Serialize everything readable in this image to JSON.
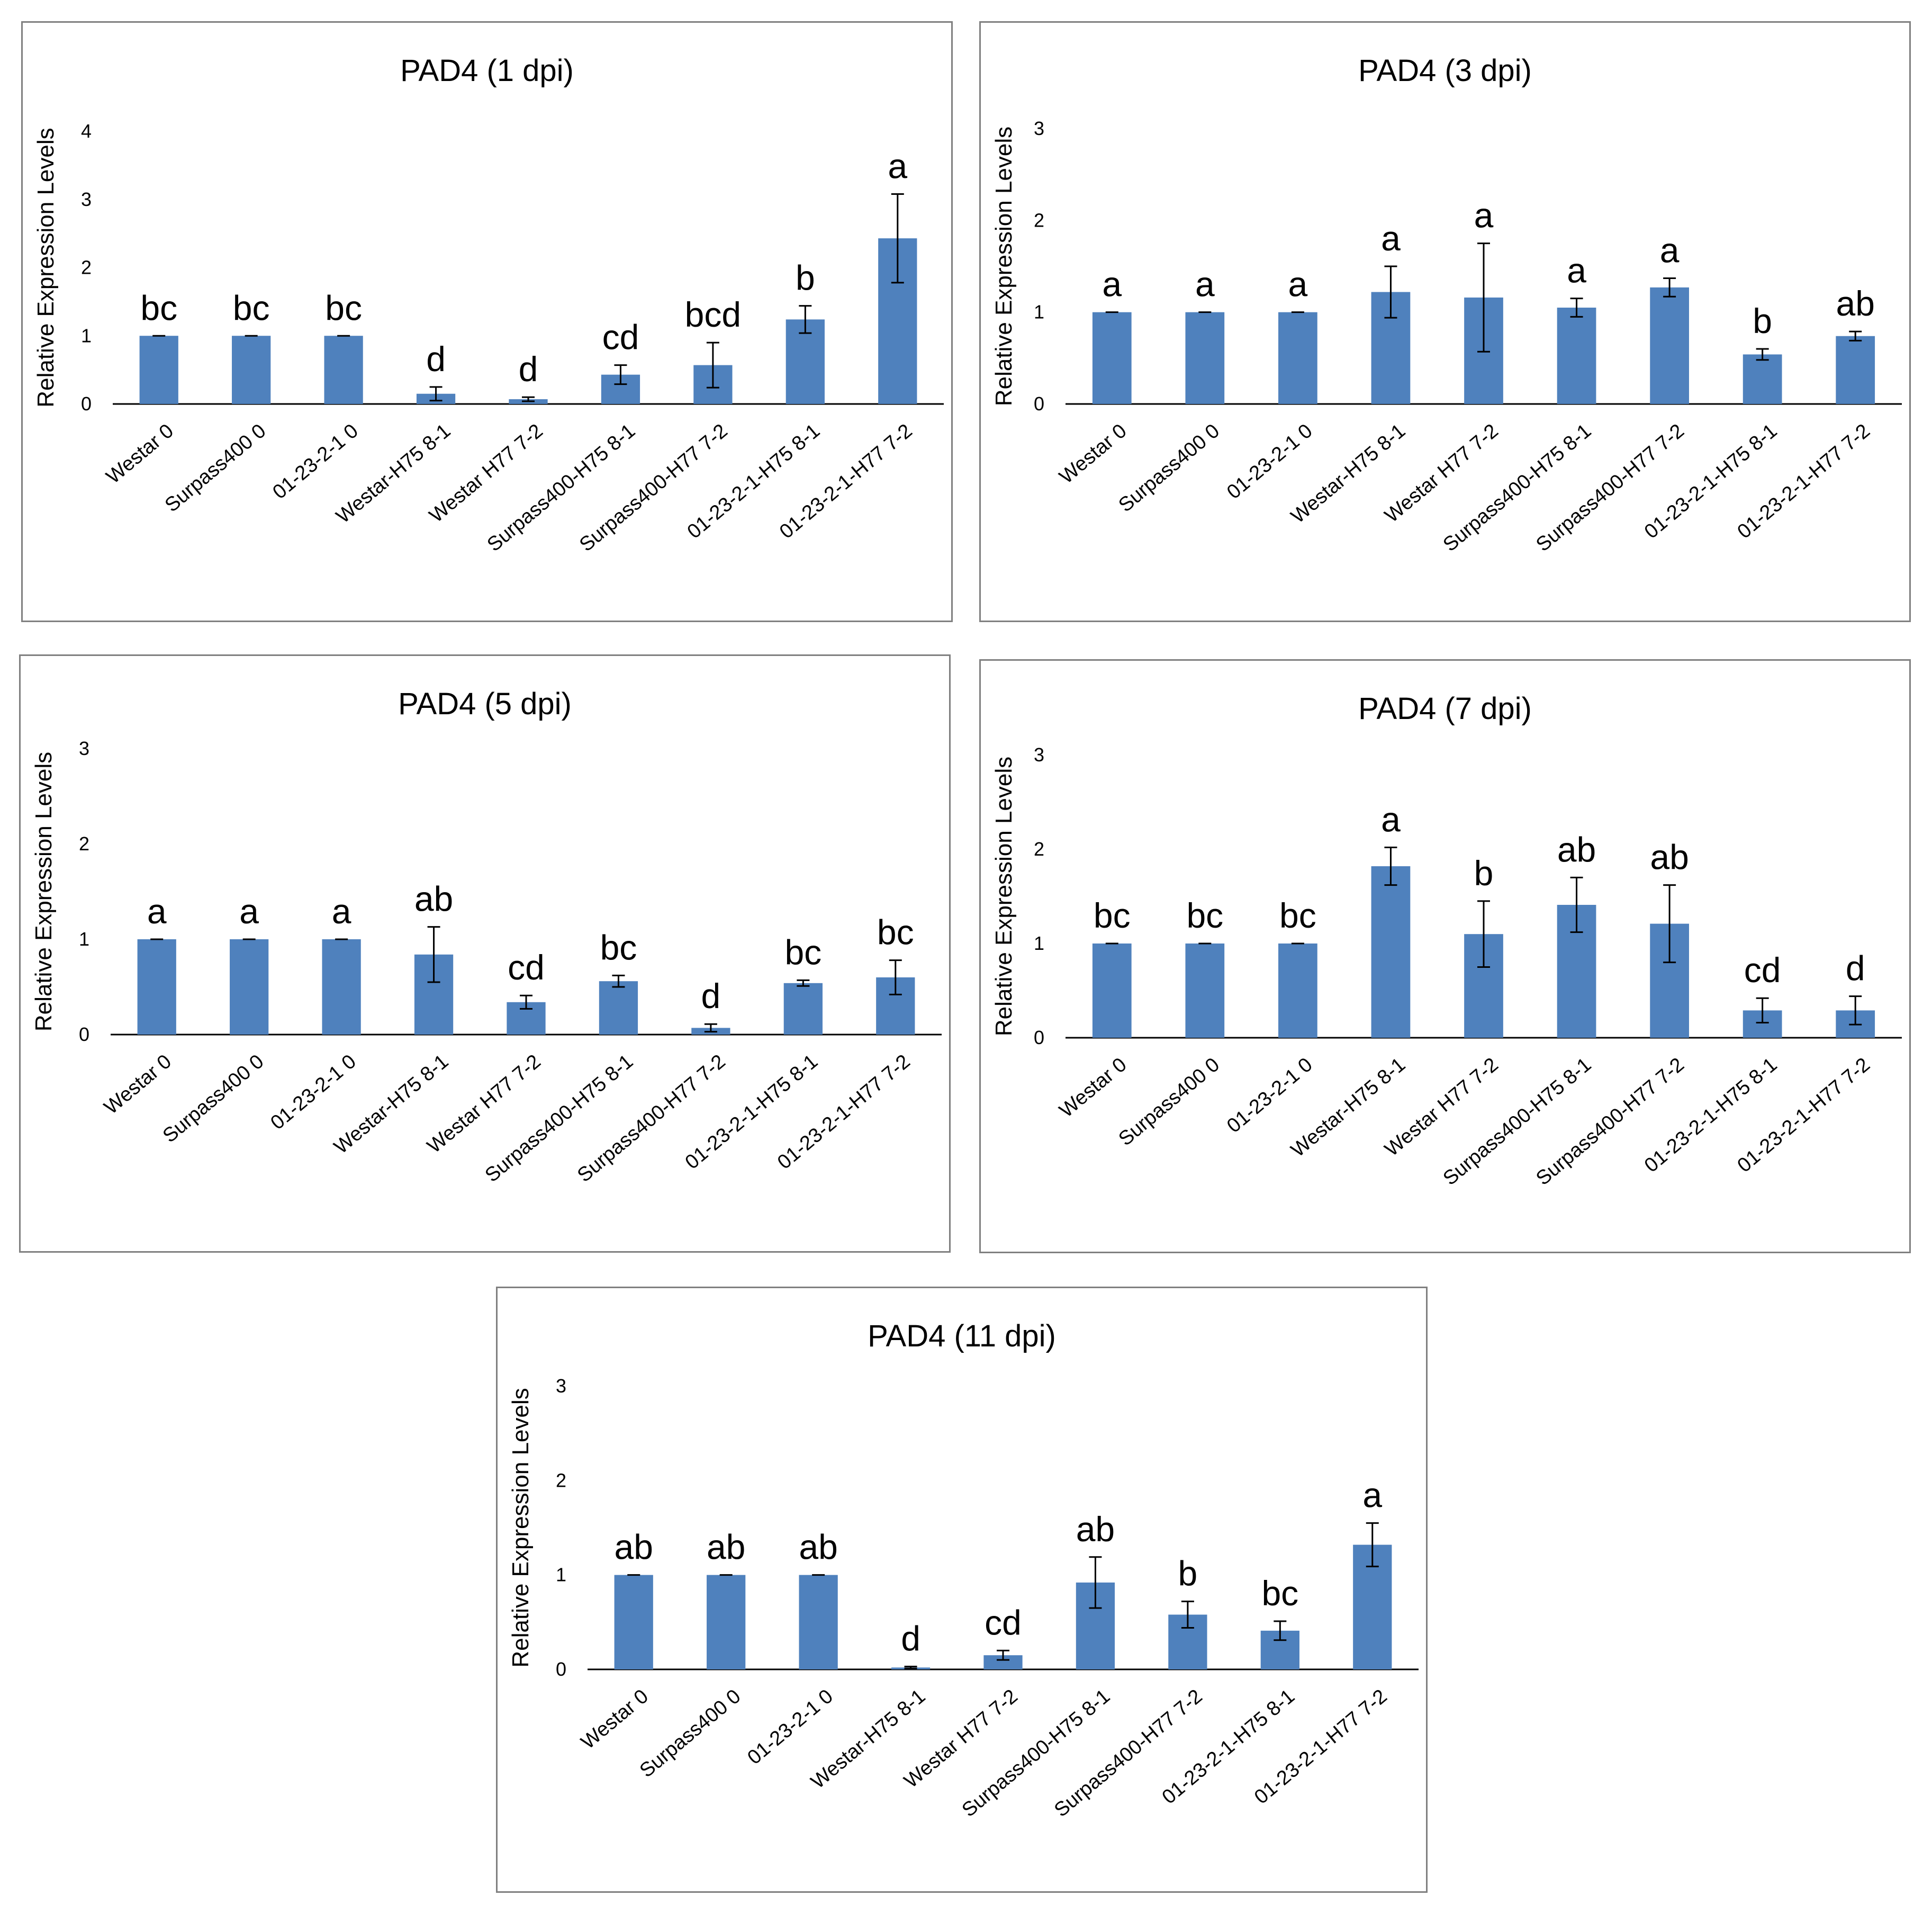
{
  "chart_data": [
    {
      "type": "bar",
      "title": "PAD4 (1 dpi)",
      "ylabel": "Relative Expression Levels",
      "xlabel": "",
      "ylim": [
        0,
        4
      ],
      "yticks": [
        "0",
        "1",
        "2",
        "3",
        "4"
      ],
      "categories": [
        "Westar 0",
        "Surpass400 0",
        "01-23-2-1 0",
        "Westar-H75 8-1",
        "Westar H77 7-2",
        "Surpass400-H75 8-1",
        "Surpass400-H77 7-2",
        "01-23-2-1-H75 8-1",
        "01-23-2-1-H77 7-2"
      ],
      "values": [
        1.0,
        1.0,
        1.0,
        0.15,
        0.07,
        0.43,
        0.57,
        1.24,
        2.43
      ],
      "errors": [
        0.0,
        0.0,
        0.0,
        0.1,
        0.03,
        0.14,
        0.33,
        0.2,
        0.65
      ],
      "labels": [
        "bc",
        "bc",
        "bc",
        "d",
        "d",
        "cd",
        "bcd",
        "b",
        "a"
      ],
      "color": "#4f81bd"
    },
    {
      "type": "bar",
      "title": "PAD4 (3 dpi)",
      "ylabel": "Relative Expression Levels",
      "xlabel": "",
      "ylim": [
        0,
        3
      ],
      "yticks": [
        "0",
        "1",
        "2",
        "3"
      ],
      "categories": [
        "Westar 0",
        "Surpass400 0",
        "01-23-2-1 0",
        "Westar-H75 8-1",
        "Westar H77 7-2",
        "Surpass400-H75 8-1",
        "Surpass400-H77 7-2",
        "01-23-2-1-H75 8-1",
        "01-23-2-1-H77 7-2"
      ],
      "values": [
        1.0,
        1.0,
        1.0,
        1.22,
        1.16,
        1.05,
        1.27,
        0.54,
        0.74
      ],
      "errors": [
        0.0,
        0.0,
        0.0,
        0.28,
        0.59,
        0.1,
        0.1,
        0.06,
        0.05
      ],
      "labels": [
        "a",
        "a",
        "a",
        "a",
        "a",
        "a",
        "a",
        "b",
        "ab"
      ],
      "color": "#4f81bd"
    },
    {
      "type": "bar",
      "title": "PAD4 (5 dpi)",
      "ylabel": "Relative Expression Levels",
      "xlabel": "",
      "ylim": [
        0,
        3
      ],
      "yticks": [
        "0",
        "1",
        "2",
        "3"
      ],
      "categories": [
        "Westar 0",
        "Surpass400 0",
        "01-23-2-1 0",
        "Westar-H75 8-1",
        "Westar H77 7-2",
        "Surpass400-H75 8-1",
        "Surpass400-H77 7-2",
        "01-23-2-1-H75 8-1",
        "01-23-2-1-H77 7-2"
      ],
      "values": [
        1.0,
        1.0,
        1.0,
        0.84,
        0.34,
        0.56,
        0.07,
        0.54,
        0.6
      ],
      "errors": [
        0.0,
        0.0,
        0.0,
        0.29,
        0.07,
        0.06,
        0.04,
        0.03,
        0.18
      ],
      "labels": [
        "a",
        "a",
        "a",
        "ab",
        "cd",
        "bc",
        "d",
        "bc",
        "bc"
      ],
      "color": "#4f81bd"
    },
    {
      "type": "bar",
      "title": "PAD4 (7 dpi)",
      "ylabel": "Relative Expression Levels",
      "xlabel": "",
      "ylim": [
        0,
        3
      ],
      "yticks": [
        "0",
        "1",
        "2",
        "3"
      ],
      "categories": [
        "Westar 0",
        "Surpass400 0",
        "01-23-2-1 0",
        "Westar-H75 8-1",
        "Westar H77 7-2",
        "Surpass400-H75 8-1",
        "Surpass400-H77 7-2",
        "01-23-2-1-H75 8-1",
        "01-23-2-1-H77 7-2"
      ],
      "values": [
        1.0,
        1.0,
        1.0,
        1.82,
        1.1,
        1.41,
        1.21,
        0.29,
        0.29
      ],
      "errors": [
        0.0,
        0.0,
        0.0,
        0.2,
        0.35,
        0.29,
        0.41,
        0.13,
        0.15
      ],
      "labels": [
        "bc",
        "bc",
        "bc",
        "a",
        "b",
        "ab",
        "ab",
        "cd",
        "d"
      ],
      "color": "#4f81bd"
    },
    {
      "type": "bar",
      "title": "PAD4 (11 dpi)",
      "ylabel": "Relative Expression Levels",
      "xlabel": "",
      "ylim": [
        0,
        3
      ],
      "yticks": [
        "0",
        "1",
        "2",
        "3"
      ],
      "categories": [
        "Westar 0",
        "Surpass400 0",
        "01-23-2-1 0",
        "Westar-H75 8-1",
        "Westar H77 7-2",
        "Surpass400-H75 8-1",
        "Surpass400-H77 7-2",
        "01-23-2-1-H75 8-1",
        "01-23-2-1-H77 7-2"
      ],
      "values": [
        1.0,
        1.0,
        1.0,
        0.02,
        0.15,
        0.92,
        0.58,
        0.41,
        1.32
      ],
      "errors": [
        0.0,
        0.0,
        0.0,
        0.01,
        0.05,
        0.27,
        0.14,
        0.1,
        0.23
      ],
      "labels": [
        "ab",
        "ab",
        "ab",
        "d",
        "cd",
        "ab",
        "b",
        "bc",
        "a"
      ],
      "color": "#4f81bd"
    }
  ]
}
